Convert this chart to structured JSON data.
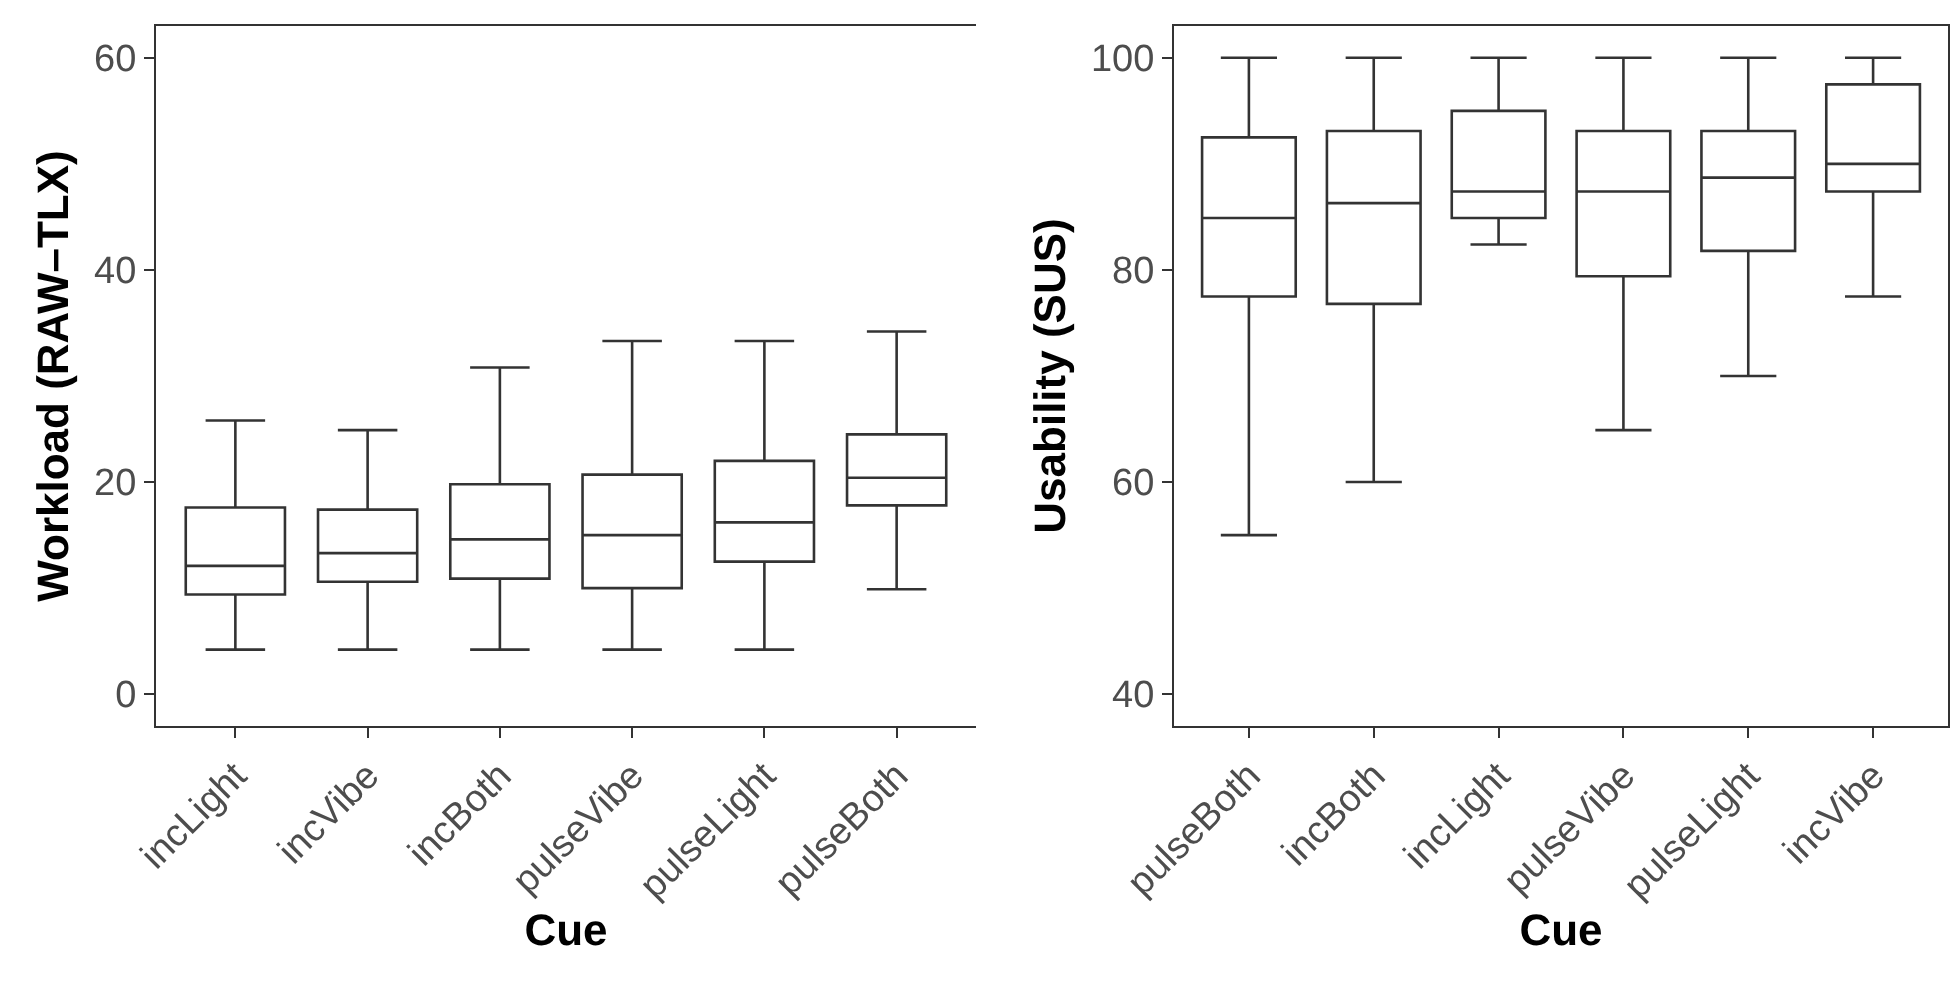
{
  "chart_data": [
    {
      "type": "box",
      "xlabel": "Cue",
      "ylabel": "Workload (RAW–TLX)",
      "color": "#333333",
      "grid": false,
      "categories": [
        "incLight",
        "incVibe",
        "incBoth",
        "pulseVibe",
        "pulseLight",
        "pulseBoth"
      ],
      "boxes": [
        {
          "low": 4.2,
          "q1": 9.4,
          "median": 12.1,
          "q3": 17.6,
          "high": 25.8
        },
        {
          "low": 4.2,
          "q1": 10.6,
          "median": 13.3,
          "q3": 17.4,
          "high": 24.9
        },
        {
          "low": 4.2,
          "q1": 10.9,
          "median": 14.6,
          "q3": 19.8,
          "high": 30.8
        },
        {
          "low": 4.2,
          "q1": 10.0,
          "median": 15.0,
          "q3": 20.7,
          "high": 33.3
        },
        {
          "low": 4.2,
          "q1": 12.5,
          "median": 16.2,
          "q3": 22.0,
          "high": 33.3
        },
        {
          "low": 9.9,
          "q1": 17.8,
          "median": 20.4,
          "q3": 24.5,
          "high": 34.2
        }
      ],
      "ylim": [
        -3,
        63
      ],
      "yticks": [
        0,
        20,
        40,
        60
      ]
    },
    {
      "type": "box",
      "xlabel": "Cue",
      "ylabel": "Usability (SUS)",
      "color": "#333333",
      "grid": false,
      "categories": [
        "pulseBoth",
        "incBoth",
        "incLight",
        "pulseVibe",
        "pulseLight",
        "incVibe"
      ],
      "boxes": [
        {
          "low": 55.0,
          "q1": 77.5,
          "median": 84.9,
          "q3": 92.5,
          "high": 100
        },
        {
          "low": 60.0,
          "q1": 76.8,
          "median": 86.3,
          "q3": 93.1,
          "high": 100
        },
        {
          "low": 82.4,
          "q1": 84.9,
          "median": 87.4,
          "q3": 95.0,
          "high": 100
        },
        {
          "low": 64.9,
          "q1": 79.4,
          "median": 87.4,
          "q3": 93.1,
          "high": 100
        },
        {
          "low": 70.0,
          "q1": 81.8,
          "median": 88.7,
          "q3": 93.1,
          "high": 100
        },
        {
          "low": 77.5,
          "q1": 87.4,
          "median": 90.0,
          "q3": 97.5,
          "high": 100
        }
      ],
      "ylim": [
        37,
        103
      ],
      "yticks": [
        40,
        60,
        80,
        100
      ]
    }
  ]
}
